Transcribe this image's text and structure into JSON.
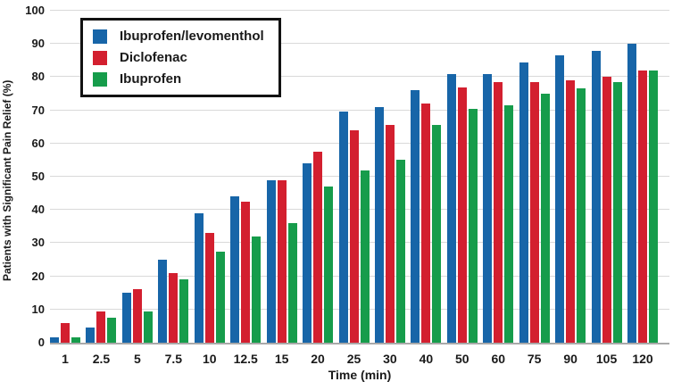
{
  "chart_data": {
    "type": "bar",
    "title": "",
    "xlabel": "Time (min)",
    "ylabel": "Patients with Significant Pain Relief (%)",
    "ylim": [
      0,
      100
    ],
    "yticks": [
      0,
      10,
      20,
      30,
      40,
      50,
      60,
      70,
      80,
      90,
      100
    ],
    "grid": true,
    "legend_position": "top-left-inside",
    "categories": [
      "1",
      "2.5",
      "5",
      "7.5",
      "10",
      "12.5",
      "15",
      "20",
      "25",
      "30",
      "40",
      "50",
      "60",
      "75",
      "90",
      "105",
      "120"
    ],
    "series": [
      {
        "name": "Ibuprofen/levomenthol",
        "color": "#1765A8",
        "values": [
          1.5,
          4.5,
          15,
          25,
          39,
          44,
          49,
          54,
          69.5,
          71,
          76,
          81,
          81,
          84.5,
          86.5,
          88,
          90
        ]
      },
      {
        "name": "Diclofenac",
        "color": "#D31F2F",
        "values": [
          6,
          9.5,
          16,
          21,
          33,
          42.5,
          49,
          57.5,
          64,
          65.5,
          72,
          77,
          78.5,
          78.5,
          79,
          80,
          82
        ]
      },
      {
        "name": "Ibuprofen",
        "color": "#169C4B",
        "values": [
          1.5,
          7.5,
          9.5,
          19,
          27.5,
          32,
          36,
          47,
          52,
          55,
          65.5,
          70.5,
          71.5,
          75,
          76.5,
          78.5,
          82
        ]
      }
    ]
  }
}
